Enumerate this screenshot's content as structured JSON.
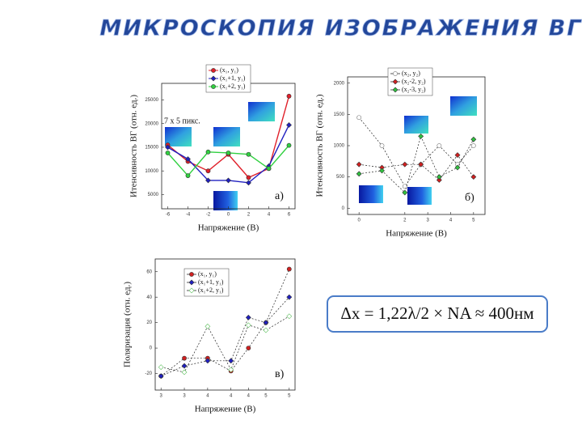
{
  "title": "МИКРОСКОПИЯ ИЗОБРАЖЕНИЯ ВГ",
  "formula": "Δx = 1,22λ/2 × NA ≈ 400нм",
  "chart_data": [
    {
      "type": "line",
      "xlabel": "Напряжение (В)",
      "ylabel": "Итенсивность ВГ (отн. ед.)",
      "annotations": [
        "7 x 5 пикс.",
        "а)"
      ],
      "x": [
        -6,
        -4,
        -2,
        0,
        2,
        4,
        6
      ],
      "xlim": [
        -6.6,
        6.6
      ],
      "xticks": [
        -6,
        -4,
        -2,
        0,
        2,
        4,
        6
      ],
      "ylim": [
        2000,
        28500
      ],
      "yticks": [
        5000,
        10000,
        15000,
        20000,
        25000
      ],
      "line_style": "solid",
      "series": [
        {
          "name": "(x₁, y₁)",
          "color": "#e0202a",
          "marker": "circle",
          "values": [
            15500,
            12000,
            10000,
            13500,
            8600,
            10500,
            25800
          ]
        },
        {
          "name": "(x₁+1, y₁)",
          "color": "#2020c0",
          "marker": "diamond",
          "values": [
            15000,
            12500,
            8000,
            8000,
            7500,
            11000,
            19700
          ]
        },
        {
          "name": "(x₁+2, y₁)",
          "color": "#30d040",
          "marker": "circle",
          "values": [
            13800,
            9000,
            14000,
            13800,
            13500,
            10500,
            15400
          ]
        }
      ]
    },
    {
      "type": "line",
      "xlabel": "Напряжение (В)",
      "ylabel": "Итенсивность ВГ (отн. ед.)",
      "annotations": [
        "б)"
      ],
      "x": [
        0,
        1,
        2,
        2.7,
        3.5,
        4.3,
        5
      ],
      "xlim": [
        -0.5,
        5.5
      ],
      "xticks": [
        0,
        2,
        3,
        4,
        5
      ],
      "ylim": [
        -100,
        2100
      ],
      "yticks": [
        0,
        500,
        1000,
        1500,
        2000
      ],
      "line_style": "dashed",
      "series": [
        {
          "name": "(x₂, y₂)",
          "color": "#777777",
          "marker": "open-circle",
          "values": [
            1450,
            1000,
            350,
            700,
            1000,
            700,
            1000
          ]
        },
        {
          "name": "(x₂-2, y₂)",
          "color": "#d02020",
          "marker": "diamond",
          "values": [
            700,
            650,
            700,
            700,
            450,
            850,
            500
          ]
        },
        {
          "name": "(x₂-3, y₂)",
          "color": "#30c040",
          "marker": "diamond",
          "values": [
            550,
            600,
            250,
            1150,
            500,
            650,
            1100
          ]
        }
      ]
    },
    {
      "type": "line",
      "xlabel": "Напряжение (В)",
      "ylabel": "Поляризация (отн. ед.)",
      "annotations": [
        "в)"
      ],
      "x": [
        2.9,
        3.3,
        3.7,
        4.1,
        4.4,
        4.7,
        5.1
      ],
      "xlim": [
        2.8,
        5.2
      ],
      "xticks": [
        {
          "value": 2.9,
          "label": "3"
        },
        {
          "value": 3.3,
          "label": "3"
        },
        {
          "value": 3.7,
          "label": "4"
        },
        {
          "value": 4.1,
          "label": "4"
        },
        {
          "value": 4.4,
          "label": "4"
        },
        {
          "value": 4.7,
          "label": "5"
        },
        {
          "value": 5.1,
          "label": "5"
        }
      ],
      "ylim": [
        -33,
        70
      ],
      "yticks": [
        -20,
        0,
        20,
        40,
        60
      ],
      "line_style": "dashed",
      "series": [
        {
          "name": "(x₁, y₁)",
          "color": "#d02020",
          "marker": "circle",
          "values": [
            -22,
            -8,
            -8,
            -18,
            0,
            20,
            62
          ]
        },
        {
          "name": "(x₁+1, y₁)",
          "color": "#2020c0",
          "marker": "diamond",
          "values": [
            -22,
            -14,
            -10,
            -10,
            24,
            20,
            40
          ]
        },
        {
          "name": "(x₁+2, y₁)",
          "color": "#60c060",
          "marker": "open-diamond",
          "values": [
            -15,
            -19,
            17,
            -17,
            18,
            14,
            25
          ]
        }
      ]
    }
  ]
}
